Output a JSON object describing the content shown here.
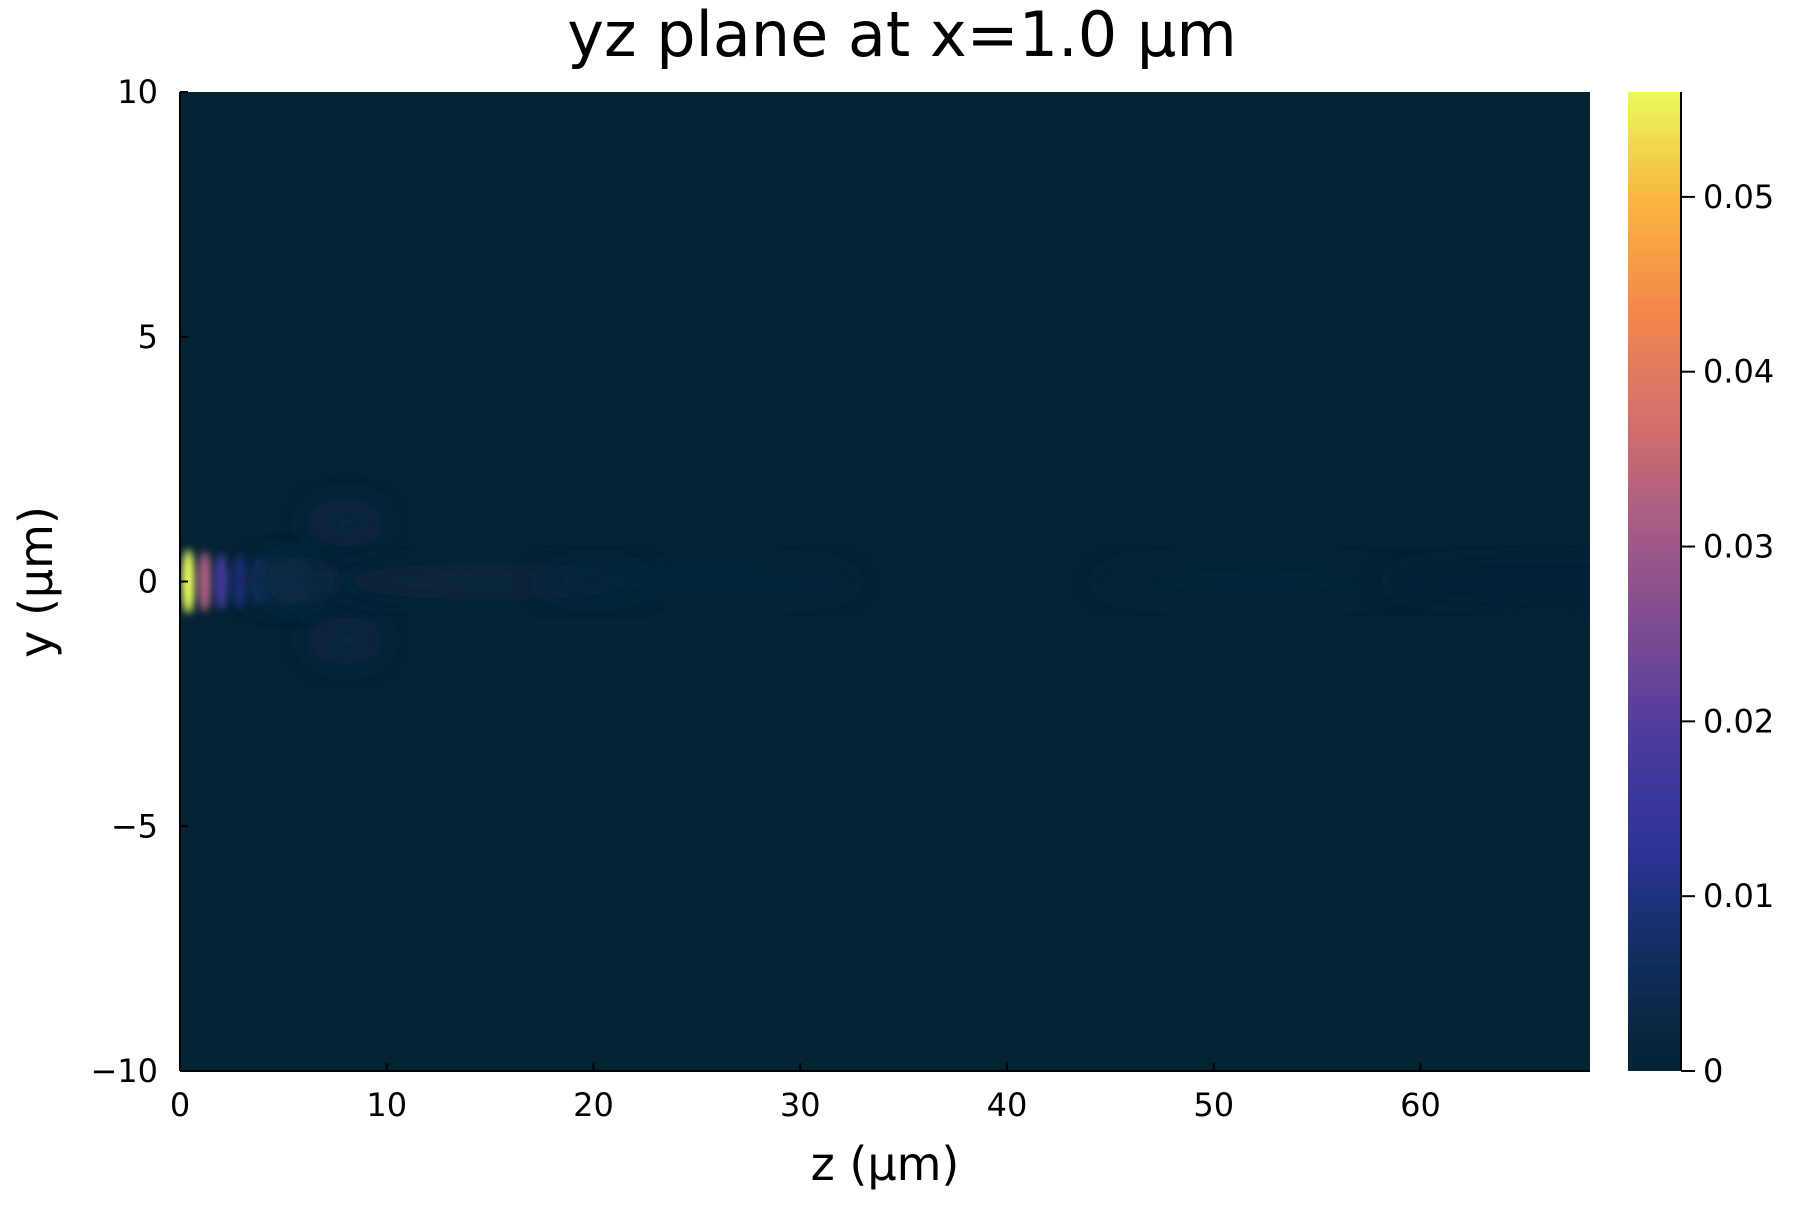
{
  "chart_data": {
    "type": "heatmap",
    "title": "yz plane at x=1.0 μm",
    "xlabel": "z (μm)",
    "ylabel": "y (μm)",
    "xlim": [
      0,
      68.2
    ],
    "ylim": [
      -10,
      10
    ],
    "x_ticks": [
      {
        "value": 0,
        "label": "0"
      },
      {
        "value": 10,
        "label": "10"
      },
      {
        "value": 20,
        "label": "20"
      },
      {
        "value": 30,
        "label": "30"
      },
      {
        "value": 40,
        "label": "40"
      },
      {
        "value": 50,
        "label": "50"
      },
      {
        "value": 60,
        "label": "60"
      }
    ],
    "y_ticks": [
      {
        "value": 10,
        "label": "10"
      },
      {
        "value": 5,
        "label": "5"
      },
      {
        "value": 0,
        "label": "0"
      },
      {
        "value": -5,
        "label": "−5"
      },
      {
        "value": -10,
        "label": "−10"
      }
    ],
    "colorbar": {
      "range": [
        0,
        0.056
      ],
      "ticks": [
        {
          "value": 0,
          "label": "0"
        },
        {
          "value": 0.01,
          "label": "0.01"
        },
        {
          "value": 0.02,
          "label": "0.02"
        },
        {
          "value": 0.03,
          "label": "0.03"
        },
        {
          "value": 0.04,
          "label": "0.04"
        },
        {
          "value": 0.05,
          "label": "0.05"
        }
      ],
      "colormap": [
        "#042333",
        "#0f2f5c",
        "#2c3395",
        "#4a3b9f",
        "#7a4a93",
        "#a65c85",
        "#d56f6a",
        "#f4874b",
        "#f9b53f",
        "#e8fa5b"
      ]
    },
    "background_color": "#042333",
    "features": [
      {
        "z": 0.4,
        "y": 0.0,
        "value": 0.056
      },
      {
        "z": 1.2,
        "y": 0.0,
        "value": 0.032
      },
      {
        "z": 2.0,
        "y": 0.0,
        "value": 0.018
      },
      {
        "z": 2.9,
        "y": 0.0,
        "value": 0.011
      },
      {
        "z": 3.8,
        "y": 0.0,
        "value": 0.007
      },
      {
        "z": 4.8,
        "y": 0.0,
        "value": 0.004
      },
      {
        "z": 6.0,
        "y": 0.0,
        "value": 0.003
      },
      {
        "z": 8.0,
        "y": 1.2,
        "value": 0.0025
      },
      {
        "z": 8.0,
        "y": -1.2,
        "value": 0.0025
      },
      {
        "z": 15.0,
        "y": 0.0,
        "value": 0.0015
      },
      {
        "z": 25.0,
        "y": 0.0,
        "value": 0.001
      },
      {
        "z": 52.0,
        "y": 0.0,
        "value": 0.0008
      },
      {
        "z": 66.0,
        "y": 0.0,
        "value": 0.0006
      }
    ]
  }
}
